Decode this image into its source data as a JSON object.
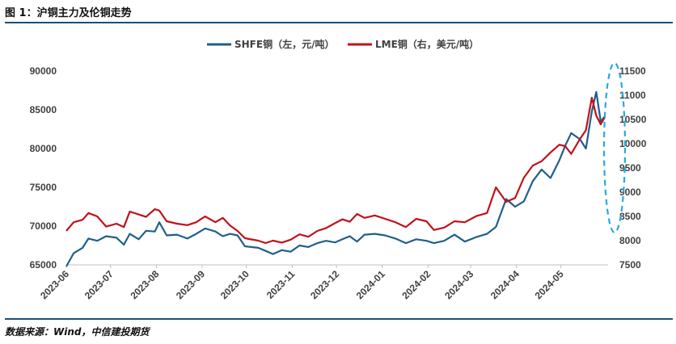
{
  "figure": {
    "title": "图 1：沪铜主力及伦铜走势",
    "source": "数据来源：Wind，中信建投期货"
  },
  "colors": {
    "shfe": "#1f5f8b",
    "lme": "#c0121b",
    "highlight": "#29a8e0",
    "rule": "#1f4e79"
  },
  "chart_data": {
    "type": "line",
    "title": "图 1：沪铜主力及伦铜走势",
    "x_tick_labels": [
      "2023-06",
      "2023-07",
      "2023-08",
      "2023-09",
      "2023-10",
      "2023-11",
      "2023-12",
      "2024-01",
      "2024-02",
      "2024-03",
      "2024-04",
      "2024-05"
    ],
    "x_range": [
      "2023-06-01",
      "2024-06-02"
    ],
    "y_left": {
      "ylim": [
        65000,
        90000
      ],
      "ticks": [
        "65000",
        "70000",
        "75000",
        "80000",
        "85000",
        "90000"
      ],
      "unit": "元/吨"
    },
    "y_right": {
      "ylim": [
        7500,
        11500
      ],
      "ticks": [
        "7500",
        "8000",
        "8500",
        "9000",
        "9500",
        "10000",
        "10500",
        "11000",
        "11500"
      ],
      "unit": "美元/吨"
    },
    "legend_position": "top-center",
    "grid": false,
    "annotations": [
      "dashed ellipse highlighting late May 2024 peak"
    ],
    "series": [
      {
        "name": "SHFE铜（左，元/吨）",
        "axis": "left",
        "color": "#1f5f8b",
        "points": [
          [
            "2023-06-01",
            64800
          ],
          [
            "2023-06-06",
            66500
          ],
          [
            "2023-06-12",
            67200
          ],
          [
            "2023-06-16",
            68400
          ],
          [
            "2023-06-22",
            68100
          ],
          [
            "2023-06-28",
            68700
          ],
          [
            "2023-07-05",
            68500
          ],
          [
            "2023-07-10",
            67600
          ],
          [
            "2023-07-14",
            69000
          ],
          [
            "2023-07-20",
            68300
          ],
          [
            "2023-07-25",
            69400
          ],
          [
            "2023-07-31",
            69300
          ],
          [
            "2023-08-03",
            70500
          ],
          [
            "2023-08-08",
            68800
          ],
          [
            "2023-08-15",
            68900
          ],
          [
            "2023-08-22",
            68400
          ],
          [
            "2023-08-28",
            69000
          ],
          [
            "2023-09-03",
            69700
          ],
          [
            "2023-09-10",
            69300
          ],
          [
            "2023-09-15",
            68700
          ],
          [
            "2023-09-20",
            69000
          ],
          [
            "2023-09-25",
            68800
          ],
          [
            "2023-09-30",
            67400
          ],
          [
            "2023-10-09",
            67200
          ],
          [
            "2023-10-14",
            66800
          ],
          [
            "2023-10-19",
            66400
          ],
          [
            "2023-10-25",
            66900
          ],
          [
            "2023-10-31",
            66700
          ],
          [
            "2023-11-06",
            67500
          ],
          [
            "2023-11-12",
            67300
          ],
          [
            "2023-11-18",
            67800
          ],
          [
            "2023-11-24",
            68100
          ],
          [
            "2023-11-30",
            67900
          ],
          [
            "2023-12-05",
            68300
          ],
          [
            "2023-12-10",
            68700
          ],
          [
            "2023-12-15",
            68000
          ],
          [
            "2023-12-20",
            68900
          ],
          [
            "2023-12-27",
            69000
          ],
          [
            "2024-01-03",
            68800
          ],
          [
            "2024-01-10",
            68400
          ],
          [
            "2024-01-17",
            67800
          ],
          [
            "2024-01-24",
            68300
          ],
          [
            "2024-01-31",
            68100
          ],
          [
            "2024-02-05",
            67800
          ],
          [
            "2024-02-12",
            68100
          ],
          [
            "2024-02-19",
            68900
          ],
          [
            "2024-02-26",
            68000
          ],
          [
            "2024-03-05",
            68600
          ],
          [
            "2024-03-12",
            69000
          ],
          [
            "2024-03-18",
            69900
          ],
          [
            "2024-03-25",
            73500
          ],
          [
            "2024-03-31",
            72500
          ],
          [
            "2024-04-06",
            73200
          ],
          [
            "2024-04-12",
            75800
          ],
          [
            "2024-04-18",
            77300
          ],
          [
            "2024-04-24",
            76200
          ],
          [
            "2024-04-30",
            78500
          ],
          [
            "2024-05-04",
            80400
          ],
          [
            "2024-05-08",
            82000
          ],
          [
            "2024-05-14",
            81200
          ],
          [
            "2024-05-18",
            80000
          ],
          [
            "2024-05-22",
            84800
          ],
          [
            "2024-05-25",
            87300
          ],
          [
            "2024-05-28",
            83500
          ],
          [
            "2024-05-31",
            84200
          ]
        ]
      },
      {
        "name": "LME铜（右，美元/吨）",
        "axis": "right",
        "color": "#c0121b",
        "points": [
          [
            "2023-06-01",
            8200
          ],
          [
            "2023-06-06",
            8380
          ],
          [
            "2023-06-12",
            8430
          ],
          [
            "2023-06-16",
            8570
          ],
          [
            "2023-06-22",
            8500
          ],
          [
            "2023-06-28",
            8290
          ],
          [
            "2023-07-05",
            8350
          ],
          [
            "2023-07-10",
            8280
          ],
          [
            "2023-07-14",
            8600
          ],
          [
            "2023-07-20",
            8540
          ],
          [
            "2023-07-25",
            8490
          ],
          [
            "2023-07-31",
            8650
          ],
          [
            "2023-08-03",
            8620
          ],
          [
            "2023-08-08",
            8400
          ],
          [
            "2023-08-15",
            8350
          ],
          [
            "2023-08-22",
            8320
          ],
          [
            "2023-08-28",
            8380
          ],
          [
            "2023-09-03",
            8500
          ],
          [
            "2023-09-10",
            8380
          ],
          [
            "2023-09-15",
            8470
          ],
          [
            "2023-09-20",
            8310
          ],
          [
            "2023-09-25",
            8200
          ],
          [
            "2023-09-30",
            8050
          ],
          [
            "2023-10-09",
            8000
          ],
          [
            "2023-10-14",
            7950
          ],
          [
            "2023-10-19",
            8000
          ],
          [
            "2023-10-25",
            7960
          ],
          [
            "2023-10-31",
            8020
          ],
          [
            "2023-11-06",
            8130
          ],
          [
            "2023-11-12",
            8080
          ],
          [
            "2023-11-18",
            8200
          ],
          [
            "2023-11-24",
            8260
          ],
          [
            "2023-11-30",
            8360
          ],
          [
            "2023-12-05",
            8440
          ],
          [
            "2023-12-10",
            8390
          ],
          [
            "2023-12-15",
            8550
          ],
          [
            "2023-12-20",
            8470
          ],
          [
            "2023-12-27",
            8520
          ],
          [
            "2024-01-03",
            8450
          ],
          [
            "2024-01-10",
            8380
          ],
          [
            "2024-01-17",
            8280
          ],
          [
            "2024-01-24",
            8450
          ],
          [
            "2024-01-31",
            8400
          ],
          [
            "2024-02-05",
            8220
          ],
          [
            "2024-02-12",
            8270
          ],
          [
            "2024-02-19",
            8400
          ],
          [
            "2024-02-26",
            8380
          ],
          [
            "2024-03-05",
            8510
          ],
          [
            "2024-03-12",
            8570
          ],
          [
            "2024-03-18",
            9100
          ],
          [
            "2024-03-25",
            8800
          ],
          [
            "2024-03-31",
            8880
          ],
          [
            "2024-04-06",
            9300
          ],
          [
            "2024-04-12",
            9550
          ],
          [
            "2024-04-18",
            9640
          ],
          [
            "2024-04-24",
            9820
          ],
          [
            "2024-04-30",
            9980
          ],
          [
            "2024-05-04",
            9950
          ],
          [
            "2024-05-08",
            9790
          ],
          [
            "2024-05-14",
            10100
          ],
          [
            "2024-05-18",
            10280
          ],
          [
            "2024-05-22",
            10950
          ],
          [
            "2024-05-25",
            10580
          ],
          [
            "2024-05-28",
            10400
          ],
          [
            "2024-05-31",
            10560
          ]
        ]
      }
    ]
  }
}
